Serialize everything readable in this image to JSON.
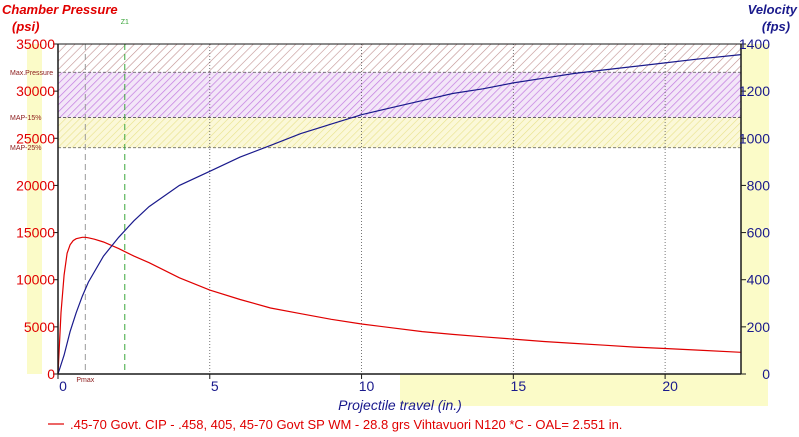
{
  "chart_data": {
    "type": "line",
    "title_left": "Chamber Pressure",
    "unit_left": "(psi)",
    "title_right": "Velocity",
    "unit_right": "(fps)",
    "xlabel": "Projectile travel (in.)",
    "xlim": [
      0,
      22.5
    ],
    "ylim_left": [
      0,
      35000
    ],
    "ylim_right": [
      0,
      1400
    ],
    "x_ticks": [
      0,
      5,
      10,
      15,
      20
    ],
    "y_left_ticks": [
      0,
      5000,
      10000,
      15000,
      20000,
      25000,
      30000,
      35000
    ],
    "y_right_ticks": [
      0,
      200,
      400,
      600,
      800,
      1000,
      1200,
      1400
    ],
    "grid": true,
    "horizontal_lines": [
      {
        "label": "Max.Pressure",
        "value": 32000
      },
      {
        "label": "MAP-15%",
        "value": 27200
      },
      {
        "label": "MAP-25%",
        "value": 24000
      }
    ],
    "bands": [
      {
        "from": 32000,
        "to": 35000,
        "color": "#c09090"
      },
      {
        "from": 27200,
        "to": 32000,
        "color": "#c27ae0"
      },
      {
        "from": 24000,
        "to": 27200,
        "color": "#e8e28a"
      }
    ],
    "markers": [
      {
        "label": "Pmax",
        "x": 0.9,
        "color": "#9a9a9a"
      },
      {
        "label": "Z1",
        "x": 2.2,
        "color": "#3aa63a"
      }
    ],
    "series": [
      {
        "name": ".45-70 Govt. CIP - .458, 405, 45-70 Govt SP WM - 28.8 grs Vihtavuori N120 *C - OAL= 2.551 in.",
        "axis": "left",
        "color": "#e00000",
        "x": [
          0,
          0.1,
          0.2,
          0.3,
          0.4,
          0.5,
          0.6,
          0.8,
          0.9,
          1.0,
          1.2,
          1.5,
          2.0,
          2.5,
          3,
          4,
          5,
          6,
          7,
          8,
          9,
          10,
          11,
          12,
          13,
          14,
          15,
          16,
          17,
          18,
          19,
          20,
          21,
          22.5
        ],
        "values": [
          0,
          6500,
          10500,
          12800,
          13700,
          14150,
          14350,
          14500,
          14500,
          14450,
          14300,
          14000,
          13300,
          12500,
          11800,
          10200,
          8900,
          7900,
          7000,
          6400,
          5800,
          5300,
          4900,
          4500,
          4200,
          3950,
          3700,
          3450,
          3250,
          3050,
          2850,
          2700,
          2550,
          2300
        ]
      },
      {
        "name": "Velocity",
        "axis": "right",
        "color": "#1a1a8c",
        "x": [
          0,
          0.2,
          0.4,
          0.6,
          0.8,
          1.0,
          1.5,
          2.0,
          2.5,
          3,
          4,
          5,
          6,
          7,
          8,
          9,
          10,
          11,
          12,
          13,
          14,
          15,
          16,
          17,
          18,
          19,
          20,
          21,
          22.5
        ],
        "values": [
          0,
          80,
          180,
          260,
          330,
          390,
          500,
          580,
          650,
          710,
          800,
          860,
          920,
          970,
          1020,
          1060,
          1100,
          1130,
          1160,
          1190,
          1210,
          1235,
          1255,
          1275,
          1290,
          1305,
          1320,
          1335,
          1355
        ]
      }
    ]
  }
}
